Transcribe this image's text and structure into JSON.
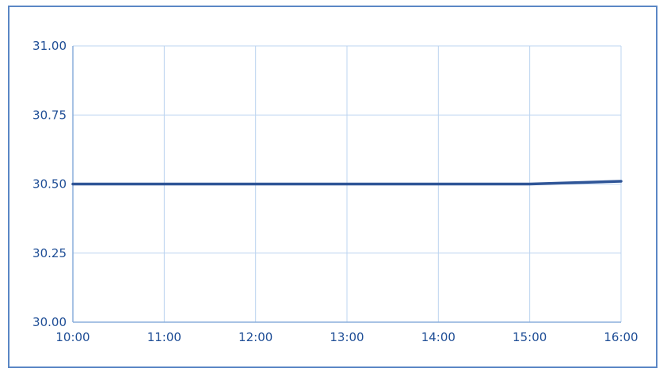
{
  "chart_data": {
    "type": "line",
    "title": "",
    "xlabel": "",
    "ylabel": "",
    "x": [
      "10:00",
      "11:00",
      "12:00",
      "13:00",
      "14:00",
      "15:00",
      "16:00"
    ],
    "series": [
      {
        "values": [
          30.5,
          30.5,
          30.5,
          30.5,
          30.5,
          30.5,
          30.51
        ]
      }
    ],
    "x_tick_labels": [
      "10:00",
      "11:00",
      "12:00",
      "13:00",
      "14:00",
      "15:00",
      "16:00"
    ],
    "y_tick_labels": [
      "30.00",
      "30.25",
      "30.50",
      "30.75",
      "31.00"
    ],
    "y_ticks": [
      30.0,
      30.25,
      30.5,
      30.75,
      31.0
    ],
    "ylim": [
      30.0,
      31.0
    ],
    "grid": true,
    "legend": "none",
    "colors": {
      "line": "#2f5597",
      "grid": "#bcd4f0",
      "axis": "#8aaedb",
      "tick_text": "#1f4e96",
      "frame": "#5b87c5"
    }
  }
}
